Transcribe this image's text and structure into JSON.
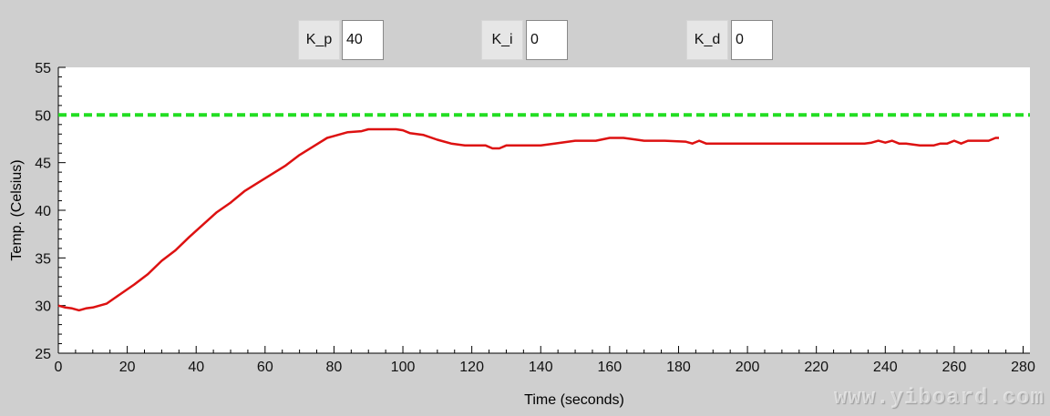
{
  "controls": {
    "kp": {
      "label": "K_p",
      "value": "40"
    },
    "ki": {
      "label": "K_i",
      "value": "0"
    },
    "kd": {
      "label": "K_d",
      "value": "0"
    }
  },
  "watermark": "www.yiboard.com",
  "colors": {
    "setpoint": "#22dd22",
    "temperature": "#dd1111",
    "background": "#cfcfcf"
  },
  "chart_data": {
    "type": "line",
    "title": "",
    "xlabel": "Time (seconds)",
    "ylabel": "Temp. (Celsius)",
    "xlim": [
      0,
      280
    ],
    "ylim": [
      25,
      55
    ],
    "xticks": [
      "0",
      "20",
      "40",
      "60",
      "80",
      "100",
      "120",
      "140",
      "160",
      "180",
      "200",
      "220",
      "240",
      "260",
      "280"
    ],
    "yticks": [
      "25",
      "30",
      "35",
      "40",
      "45",
      "50",
      "55"
    ],
    "grid": false,
    "series": [
      {
        "role": "setpoint",
        "style": "dashed",
        "x": [
          0,
          284
        ],
        "y": [
          50,
          50
        ]
      },
      {
        "role": "temperature",
        "style": "solid",
        "x": [
          0,
          2,
          4,
          6,
          8,
          10,
          14,
          18,
          22,
          26,
          30,
          34,
          38,
          42,
          46,
          50,
          54,
          58,
          62,
          66,
          70,
          74,
          78,
          80,
          84,
          88,
          90,
          94,
          98,
          100,
          102,
          106,
          110,
          114,
          118,
          122,
          124,
          126,
          128,
          130,
          140,
          144,
          150,
          156,
          160,
          164,
          166,
          170,
          176,
          182,
          184,
          186,
          188,
          200,
          220,
          234,
          236,
          238,
          240,
          242,
          244,
          246,
          250,
          254,
          256,
          258,
          260,
          262,
          264,
          270,
          272,
          273
        ],
        "y": [
          30,
          29.8,
          29.7,
          29.5,
          29.7,
          29.8,
          30.2,
          31.2,
          32.2,
          33.3,
          34.7,
          35.8,
          37.2,
          38.5,
          39.8,
          40.8,
          42.0,
          42.9,
          43.8,
          44.7,
          45.8,
          46.7,
          47.6,
          47.8,
          48.2,
          48.3,
          48.5,
          48.5,
          48.5,
          48.4,
          48.1,
          47.9,
          47.4,
          47.0,
          46.8,
          46.8,
          46.8,
          46.5,
          46.5,
          46.8,
          46.8,
          47.0,
          47.3,
          47.3,
          47.6,
          47.6,
          47.5,
          47.3,
          47.3,
          47.2,
          47.0,
          47.3,
          47.0,
          47.0,
          47.0,
          47.0,
          47.1,
          47.3,
          47.1,
          47.3,
          47.0,
          47.0,
          46.8,
          46.8,
          47.0,
          47.0,
          47.3,
          47.0,
          47.3,
          47.3,
          47.6,
          47.6
        ]
      }
    ]
  }
}
